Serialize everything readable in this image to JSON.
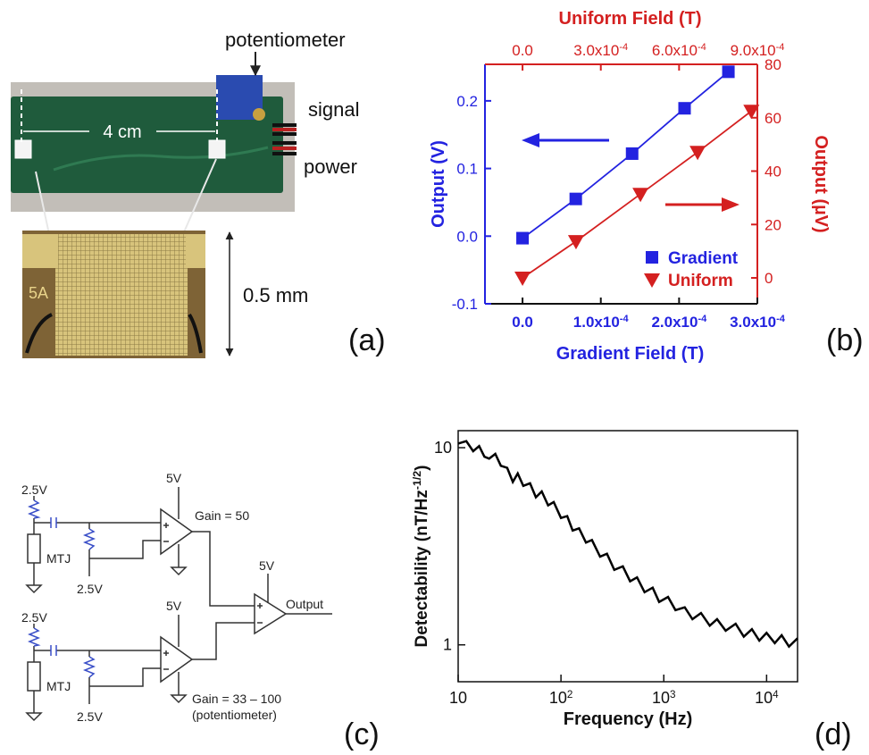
{
  "panels": [
    "(a)",
    "(b)",
    "(c)",
    "(d)"
  ],
  "photo": {
    "potentiometer": "potentiometer",
    "signal": "signal",
    "power": "power",
    "board_length": "4 cm",
    "chip_size": "0.5 mm",
    "chip_mark": "5A"
  },
  "circuit": {
    "labels": [
      "2.5V",
      "MTJ",
      "2.5V",
      "5V",
      "Gain = 50",
      "5V",
      "Output",
      "2.5V",
      "MTJ",
      "2.5V",
      "5V",
      "Gain = 33 – 100",
      "(potentiometer)"
    ]
  },
  "chart_data": [
    {
      "type": "line",
      "xlabel": "Gradient Field (T)",
      "x2label": "Uniform Field (T)",
      "ylabel": "Output (V)",
      "y2label": "Output (µV)",
      "xlim": [
        -4.8e-05,
        0.0003
      ],
      "xticks": [
        {
          "value": 0,
          "label": "0.0"
        },
        {
          "value": 0.0001,
          "label": "1.0x10",
          "exponent": "-4"
        },
        {
          "value": 0.0002,
          "label": "2.0x10",
          "exponent": "-4"
        },
        {
          "value": 0.0003,
          "label": "3.0x10",
          "exponent": "-4"
        }
      ],
      "x2lim": [
        -0.000144,
        0.0009
      ],
      "x2ticks": [
        {
          "value": 0,
          "label": "0.0"
        },
        {
          "value": 0.0003,
          "label": "3.0x10",
          "exponent": "-4"
        },
        {
          "value": 0.0006,
          "label": "6.0x10",
          "exponent": "-4"
        },
        {
          "value": 0.0009,
          "label": "9.0x10",
          "exponent": "-4"
        }
      ],
      "ylim": [
        -0.1,
        0.254
      ],
      "yticks": [
        -0.1,
        {
          "value": 0,
          "label": "0.0"
        },
        0.1,
        0.2
      ],
      "y2lim": [
        -9.7,
        80
      ],
      "y2ticks": [
        0,
        20,
        40,
        60,
        80
      ],
      "legend": "lower right",
      "series": [
        {
          "name": "Gradient",
          "color": "#2323e0",
          "marker": "square",
          "x": [
            0,
            6.8e-05,
            0.00014,
            0.000207,
            0.000263
          ],
          "values": [
            -0.003,
            0.055,
            0.122,
            0.189,
            0.243
          ]
        },
        {
          "name": "Uniform",
          "color": "#d42020",
          "marker": "triangle-down",
          "axis": "y2",
          "xaxis": "x2",
          "x": [
            0,
            0.000205,
            0.000452,
            0.000671,
            0.000877
          ],
          "values": [
            0,
            13.7,
            31.4,
            47.1,
            62.5
          ]
        }
      ]
    },
    {
      "type": "line",
      "xlabel": "Frequency (Hz)",
      "ylabel": "Detectability (nT/Hz",
      "ylabel_exponent": "-1/2",
      "ylabel_suffix": ")",
      "xscale": "log",
      "yscale": "log",
      "xlim": [
        10,
        20000
      ],
      "xticks": [
        10,
        {
          "value": 100,
          "label": "10",
          "exponent": "2"
        },
        {
          "value": 1000,
          "label": "10",
          "exponent": "3"
        },
        {
          "value": 10000,
          "label": "10",
          "exponent": "4"
        }
      ],
      "ylim": [
        0.65,
        12.2
      ],
      "yticks": [
        1,
        10
      ],
      "color": "#000000",
      "x": [
        10,
        12,
        14,
        16,
        18,
        20,
        23,
        26,
        30,
        34,
        38,
        43,
        50,
        57,
        65,
        75,
        85,
        100,
        115,
        130,
        150,
        175,
        200,
        240,
        280,
        330,
        400,
        470,
        550,
        650,
        780,
        900,
        1100,
        1300,
        1600,
        1900,
        2300,
        2800,
        3300,
        4000,
        5000,
        6000,
        7200,
        8500,
        10000,
        12000,
        14000,
        16500,
        20000
      ],
      "values": [
        10.5,
        10.8,
        9.6,
        10.2,
        9.0,
        8.8,
        9.3,
        8.1,
        7.9,
        6.7,
        7.4,
        6.4,
        6.6,
        5.6,
        6.0,
        5.1,
        5.3,
        4.4,
        4.5,
        3.8,
        3.9,
        3.3,
        3.4,
        2.8,
        2.9,
        2.4,
        2.5,
        2.1,
        2.2,
        1.85,
        1.95,
        1.65,
        1.75,
        1.5,
        1.55,
        1.35,
        1.45,
        1.25,
        1.35,
        1.18,
        1.28,
        1.1,
        1.2,
        1.05,
        1.15,
        1.02,
        1.12,
        0.98,
        1.08
      ]
    }
  ]
}
